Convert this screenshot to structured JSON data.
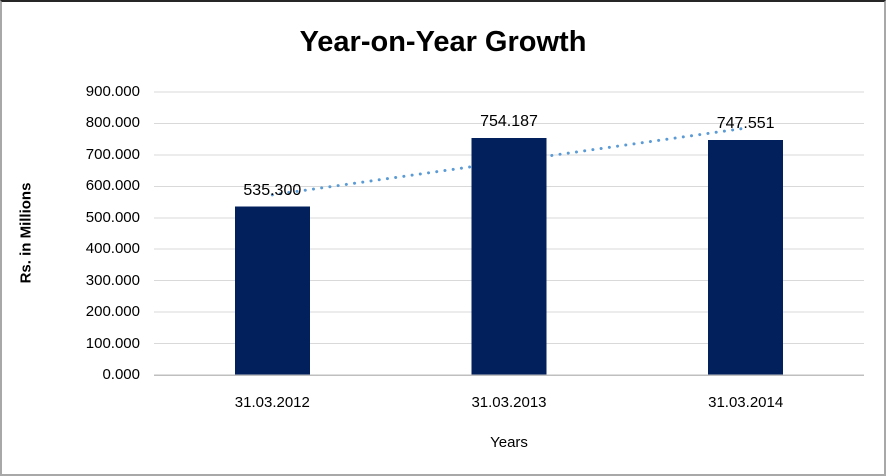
{
  "chart_data": {
    "type": "bar",
    "title": "Year-on-Year Growth",
    "xlabel": "Years",
    "ylabel": "Rs. in Millions",
    "categories": [
      "31.03.2012",
      "31.03.2013",
      "31.03.2014"
    ],
    "values": [
      535.3,
      754.187,
      747.551
    ],
    "data_labels": [
      "535.300",
      "754.187",
      "747.551"
    ],
    "ylim": [
      0,
      900
    ],
    "ytick_labels": [
      "0.000",
      "100.000",
      "200.000",
      "300.000",
      "400.000",
      "500.000",
      "600.000",
      "700.000",
      "800.000",
      "900.000"
    ],
    "grid": "horizontal",
    "legend": "none",
    "trendline": {
      "type": "linear",
      "style": "dotted",
      "color": "#5B9BD5"
    },
    "colors": {
      "bar": "#02215C",
      "gridline": "#D9D9D9",
      "axis_line": "#BFBFBF",
      "text": "#000000"
    }
  }
}
